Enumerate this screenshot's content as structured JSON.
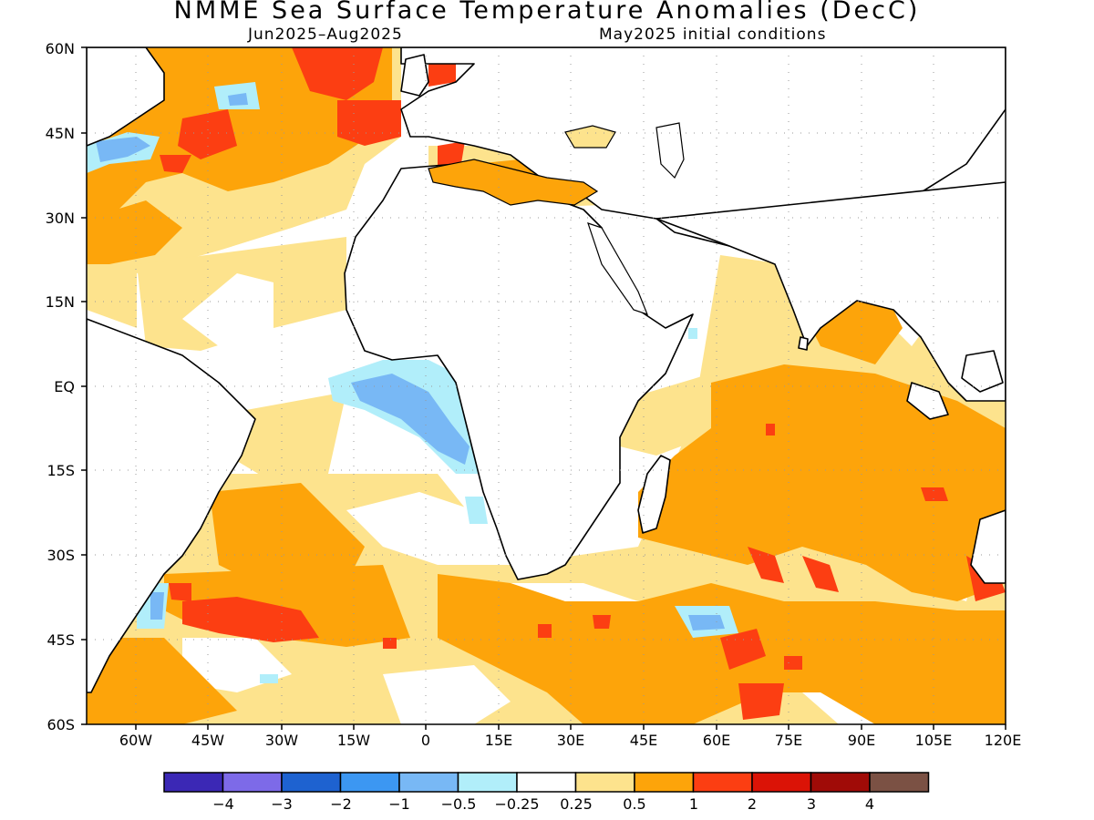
{
  "title": "NMME Sea Surface Temperature Anomalies (DecC)",
  "subtitle_left": "Jun2025–Aug2025",
  "subtitle_right": "May2025 initial conditions",
  "lat_labels": [
    "60N",
    "45N",
    "30N",
    "15N",
    "EQ",
    "15S",
    "30S",
    "45S",
    "60S"
  ],
  "lon_labels": [
    "60W",
    "45W",
    "30W",
    "15W",
    "0",
    "15E",
    "30E",
    "45E",
    "60E",
    "75E",
    "90E",
    "105E",
    "120E"
  ],
  "colorbar": {
    "colors": [
      "#3b28b5",
      "#7d6ae8",
      "#1e62d0",
      "#3c97f2",
      "#78b8f5",
      "#b1eefa",
      "#ffffff",
      "#fde38d",
      "#fda40a",
      "#fc3e12",
      "#db1306",
      "#a00b07",
      "#7b5144"
    ],
    "labels": [
      "−4",
      "−3",
      "−2",
      "−1",
      "−0.5",
      "−0.25",
      "0.25",
      "0.5",
      "1",
      "2",
      "3",
      "4"
    ]
  },
  "colors": {
    "land": "#ffffff",
    "coast": "#000000",
    "grid": "#999999"
  }
}
